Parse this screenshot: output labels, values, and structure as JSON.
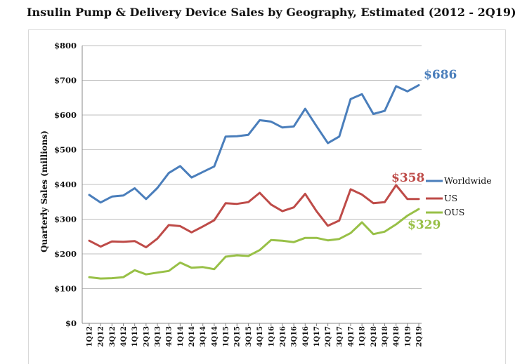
{
  "chart_data": {
    "type": "line",
    "title": "Insulin Pump & Delivery Device Sales by Geography, Estimated (2012 - 2Q19)",
    "ylabel": "Quarterly Sales (millions)",
    "xlabel": "",
    "ylim": [
      0,
      800
    ],
    "yticks": [
      "$0",
      "$100",
      "$200",
      "$300",
      "$400",
      "$500",
      "$600",
      "$700",
      "$800"
    ],
    "categories": [
      "1Q12",
      "2Q12",
      "3Q12",
      "4Q12",
      "1Q13",
      "2Q13",
      "3Q13",
      "4Q13",
      "1Q14",
      "2Q14",
      "3Q14",
      "4Q14",
      "1Q15",
      "2Q15",
      "3Q15",
      "4Q15",
      "1Q16",
      "2Q16",
      "3Q16",
      "4Q16",
      "1Q17",
      "2Q17",
      "3Q17",
      "4Q17",
      "1Q18",
      "2Q18",
      "3Q18",
      "4Q18",
      "1Q19",
      "2Q19"
    ],
    "series": [
      {
        "name": "Worldwide",
        "color": "#4a7ebb",
        "values": [
          370,
          348,
          365,
          368,
          389,
          358,
          390,
          433,
          453,
          420,
          436,
          452,
          538,
          539,
          543,
          585,
          581,
          564,
          567,
          618,
          568,
          519,
          538,
          646,
          660,
          603,
          612,
          683,
          668,
          686
        ]
      },
      {
        "name": "US",
        "color": "#be4b48",
        "values": [
          238,
          221,
          236,
          235,
          237,
          219,
          244,
          283,
          280,
          262,
          279,
          297,
          346,
          344,
          349,
          376,
          342,
          323,
          334,
          373,
          323,
          281,
          296,
          386,
          371,
          346,
          349,
          398,
          358,
          358
        ]
      },
      {
        "name": "OUS",
        "color": "#98c047",
        "values": [
          133,
          129,
          130,
          133,
          153,
          141,
          146,
          151,
          175,
          160,
          162,
          156,
          192,
          196,
          194,
          211,
          240,
          238,
          234,
          246,
          246,
          239,
          243,
          260,
          291,
          257,
          264,
          285,
          310,
          329
        ]
      }
    ],
    "annotations": [
      {
        "text": "$686",
        "series": "Worldwide",
        "color": "#4a7ebb"
      },
      {
        "text": "$358",
        "series": "US",
        "color": "#be4b48"
      },
      {
        "text": "$329",
        "series": "OUS",
        "color": "#98c047"
      }
    ],
    "legend": "right",
    "grid": true
  }
}
